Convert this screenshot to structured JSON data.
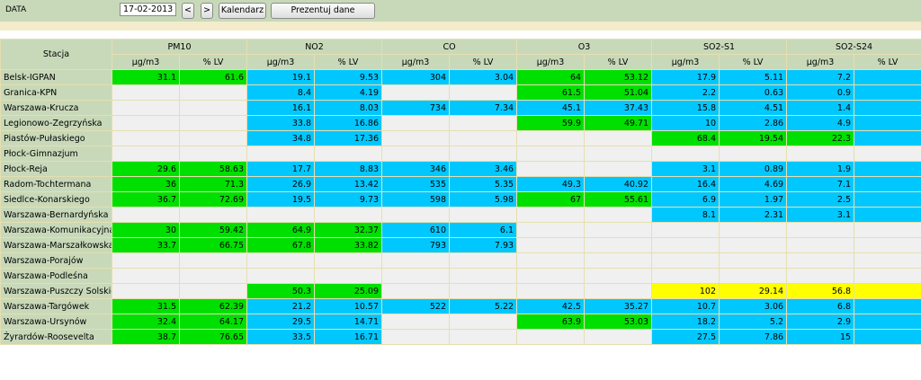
{
  "toolbar": {
    "date_label": "DATA",
    "date_value": "17-02-2013",
    "prev_label": "<",
    "next_label": ">",
    "calendar_label": "Kalendarz",
    "show_data_label": "Prezentuj dane"
  },
  "table": {
    "station_header": "Stacja",
    "pollutants": [
      "PM10",
      "NO2",
      "CO",
      "O3",
      "SO2-S1",
      "SO2-S24"
    ],
    "unit_header": "µg/m3",
    "lv_header": "% LV",
    "colors": {
      "g": "#00e000",
      "b": "#00c8ff",
      "y": "#ffff00",
      "e": "#f0f0f0"
    },
    "rows": [
      {
        "station": "Belsk-IGPAN",
        "cells": [
          [
            "31.1",
            "g"
          ],
          [
            "61.6",
            "g"
          ],
          [
            "19.1",
            "b"
          ],
          [
            "9.53",
            "b"
          ],
          [
            "304",
            "b"
          ],
          [
            "3.04",
            "b"
          ],
          [
            "64",
            "g"
          ],
          [
            "53.12",
            "g"
          ],
          [
            "17.9",
            "b"
          ],
          [
            "5.11",
            "b"
          ],
          [
            "7.2",
            "b"
          ],
          [
            "",
            "b"
          ]
        ]
      },
      {
        "station": "Granica-KPN",
        "cells": [
          [
            "",
            "e"
          ],
          [
            "",
            "e"
          ],
          [
            "8.4",
            "b"
          ],
          [
            "4.19",
            "b"
          ],
          [
            "",
            "e"
          ],
          [
            "",
            "e"
          ],
          [
            "61.5",
            "g"
          ],
          [
            "51.04",
            "g"
          ],
          [
            "2.2",
            "b"
          ],
          [
            "0.63",
            "b"
          ],
          [
            "0.9",
            "b"
          ],
          [
            "",
            "b"
          ]
        ]
      },
      {
        "station": "Warszawa-Krucza",
        "cells": [
          [
            "",
            "e"
          ],
          [
            "",
            "e"
          ],
          [
            "16.1",
            "b"
          ],
          [
            "8.03",
            "b"
          ],
          [
            "734",
            "b"
          ],
          [
            "7.34",
            "b"
          ],
          [
            "45.1",
            "b"
          ],
          [
            "37.43",
            "b"
          ],
          [
            "15.8",
            "b"
          ],
          [
            "4.51",
            "b"
          ],
          [
            "1.4",
            "b"
          ],
          [
            "",
            "b"
          ]
        ]
      },
      {
        "station": "Legionowo-Zegrzyńska",
        "cells": [
          [
            "",
            "e"
          ],
          [
            "",
            "e"
          ],
          [
            "33.8",
            "b"
          ],
          [
            "16.86",
            "b"
          ],
          [
            "",
            "e"
          ],
          [
            "",
            "e"
          ],
          [
            "59.9",
            "g"
          ],
          [
            "49.71",
            "g"
          ],
          [
            "10",
            "b"
          ],
          [
            "2.86",
            "b"
          ],
          [
            "4.9",
            "b"
          ],
          [
            "",
            "b"
          ]
        ]
      },
      {
        "station": "Piastów-Pułaskiego",
        "cells": [
          [
            "",
            "e"
          ],
          [
            "",
            "e"
          ],
          [
            "34.8",
            "b"
          ],
          [
            "17.36",
            "b"
          ],
          [
            "",
            "e"
          ],
          [
            "",
            "e"
          ],
          [
            "",
            "e"
          ],
          [
            "",
            "e"
          ],
          [
            "68.4",
            "g"
          ],
          [
            "19.54",
            "g"
          ],
          [
            "22.3",
            "g"
          ],
          [
            "",
            "b"
          ]
        ]
      },
      {
        "station": "Płock-Gimnazjum",
        "cells": [
          [
            "",
            "e"
          ],
          [
            "",
            "e"
          ],
          [
            "",
            "e"
          ],
          [
            "",
            "e"
          ],
          [
            "",
            "e"
          ],
          [
            "",
            "e"
          ],
          [
            "",
            "e"
          ],
          [
            "",
            "e"
          ],
          [
            "",
            "e"
          ],
          [
            "",
            "e"
          ],
          [
            "",
            "e"
          ],
          [
            "",
            "e"
          ]
        ]
      },
      {
        "station": "Płock-Reja",
        "cells": [
          [
            "29.6",
            "g"
          ],
          [
            "58.63",
            "g"
          ],
          [
            "17.7",
            "b"
          ],
          [
            "8.83",
            "b"
          ],
          [
            "346",
            "b"
          ],
          [
            "3.46",
            "b"
          ],
          [
            "",
            "e"
          ],
          [
            "",
            "e"
          ],
          [
            "3.1",
            "b"
          ],
          [
            "0.89",
            "b"
          ],
          [
            "1.9",
            "b"
          ],
          [
            "",
            "b"
          ]
        ]
      },
      {
        "station": "Radom-Tochtermana",
        "cells": [
          [
            "36",
            "g"
          ],
          [
            "71.3",
            "g"
          ],
          [
            "26.9",
            "b"
          ],
          [
            "13.42",
            "b"
          ],
          [
            "535",
            "b"
          ],
          [
            "5.35",
            "b"
          ],
          [
            "49.3",
            "b"
          ],
          [
            "40.92",
            "b"
          ],
          [
            "16.4",
            "b"
          ],
          [
            "4.69",
            "b"
          ],
          [
            "7.1",
            "b"
          ],
          [
            "",
            "b"
          ]
        ]
      },
      {
        "station": "Siedlce-Konarskiego",
        "cells": [
          [
            "36.7",
            "g"
          ],
          [
            "72.69",
            "g"
          ],
          [
            "19.5",
            "b"
          ],
          [
            "9.73",
            "b"
          ],
          [
            "598",
            "b"
          ],
          [
            "5.98",
            "b"
          ],
          [
            "67",
            "g"
          ],
          [
            "55.61",
            "g"
          ],
          [
            "6.9",
            "b"
          ],
          [
            "1.97",
            "b"
          ],
          [
            "2.5",
            "b"
          ],
          [
            "",
            "b"
          ]
        ]
      },
      {
        "station": "Warszawa-Bernardyńska",
        "cells": [
          [
            "",
            "e"
          ],
          [
            "",
            "e"
          ],
          [
            "",
            "e"
          ],
          [
            "",
            "e"
          ],
          [
            "",
            "e"
          ],
          [
            "",
            "e"
          ],
          [
            "",
            "e"
          ],
          [
            "",
            "e"
          ],
          [
            "8.1",
            "b"
          ],
          [
            "2.31",
            "b"
          ],
          [
            "3.1",
            "b"
          ],
          [
            "",
            "b"
          ]
        ]
      },
      {
        "station": "Warszawa-Komunikacyjna",
        "cells": [
          [
            "30",
            "g"
          ],
          [
            "59.42",
            "g"
          ],
          [
            "64.9",
            "g"
          ],
          [
            "32.37",
            "g"
          ],
          [
            "610",
            "b"
          ],
          [
            "6.1",
            "b"
          ],
          [
            "",
            "e"
          ],
          [
            "",
            "e"
          ],
          [
            "",
            "e"
          ],
          [
            "",
            "e"
          ],
          [
            "",
            "e"
          ],
          [
            "",
            "e"
          ]
        ]
      },
      {
        "station": "Warszawa-Marszałkowska",
        "cells": [
          [
            "33.7",
            "g"
          ],
          [
            "66.75",
            "g"
          ],
          [
            "67.8",
            "g"
          ],
          [
            "33.82",
            "g"
          ],
          [
            "793",
            "b"
          ],
          [
            "7.93",
            "b"
          ],
          [
            "",
            "e"
          ],
          [
            "",
            "e"
          ],
          [
            "",
            "e"
          ],
          [
            "",
            "e"
          ],
          [
            "",
            "e"
          ],
          [
            "",
            "e"
          ]
        ]
      },
      {
        "station": "Warszawa-Porajów",
        "cells": [
          [
            "",
            "e"
          ],
          [
            "",
            "e"
          ],
          [
            "",
            "e"
          ],
          [
            "",
            "e"
          ],
          [
            "",
            "e"
          ],
          [
            "",
            "e"
          ],
          [
            "",
            "e"
          ],
          [
            "",
            "e"
          ],
          [
            "",
            "e"
          ],
          [
            "",
            "e"
          ],
          [
            "",
            "e"
          ],
          [
            "",
            "e"
          ]
        ]
      },
      {
        "station": "Warszawa-Podleśna",
        "cells": [
          [
            "",
            "e"
          ],
          [
            "",
            "e"
          ],
          [
            "",
            "e"
          ],
          [
            "",
            "e"
          ],
          [
            "",
            "e"
          ],
          [
            "",
            "e"
          ],
          [
            "",
            "e"
          ],
          [
            "",
            "e"
          ],
          [
            "",
            "e"
          ],
          [
            "",
            "e"
          ],
          [
            "",
            "e"
          ],
          [
            "",
            "e"
          ]
        ]
      },
      {
        "station": "Warszawa-Puszczy Solskiej",
        "cells": [
          [
            "",
            "e"
          ],
          [
            "",
            "e"
          ],
          [
            "50.3",
            "g"
          ],
          [
            "25.09",
            "g"
          ],
          [
            "",
            "e"
          ],
          [
            "",
            "e"
          ],
          [
            "",
            "e"
          ],
          [
            "",
            "e"
          ],
          [
            "102",
            "y"
          ],
          [
            "29.14",
            "y"
          ],
          [
            "56.8",
            "y"
          ],
          [
            "",
            "y"
          ]
        ]
      },
      {
        "station": "Warszawa-Targówek",
        "cells": [
          [
            "31.5",
            "g"
          ],
          [
            "62.39",
            "g"
          ],
          [
            "21.2",
            "b"
          ],
          [
            "10.57",
            "b"
          ],
          [
            "522",
            "b"
          ],
          [
            "5.22",
            "b"
          ],
          [
            "42.5",
            "b"
          ],
          [
            "35.27",
            "b"
          ],
          [
            "10.7",
            "b"
          ],
          [
            "3.06",
            "b"
          ],
          [
            "6.8",
            "b"
          ],
          [
            "",
            "b"
          ]
        ]
      },
      {
        "station": "Warszawa-Ursynów",
        "cells": [
          [
            "32.4",
            "g"
          ],
          [
            "64.17",
            "g"
          ],
          [
            "29.5",
            "b"
          ],
          [
            "14.71",
            "b"
          ],
          [
            "",
            "e"
          ],
          [
            "",
            "e"
          ],
          [
            "63.9",
            "g"
          ],
          [
            "53.03",
            "g"
          ],
          [
            "18.2",
            "b"
          ],
          [
            "5.2",
            "b"
          ],
          [
            "2.9",
            "b"
          ],
          [
            "",
            "b"
          ]
        ]
      },
      {
        "station": "Żyrardów-Roosevelta",
        "cells": [
          [
            "38.7",
            "g"
          ],
          [
            "76.65",
            "g"
          ],
          [
            "33.5",
            "b"
          ],
          [
            "16.71",
            "b"
          ],
          [
            "",
            "e"
          ],
          [
            "",
            "e"
          ],
          [
            "",
            "e"
          ],
          [
            "",
            "e"
          ],
          [
            "27.5",
            "b"
          ],
          [
            "7.86",
            "b"
          ],
          [
            "15",
            "b"
          ],
          [
            "",
            "b"
          ]
        ]
      }
    ]
  }
}
